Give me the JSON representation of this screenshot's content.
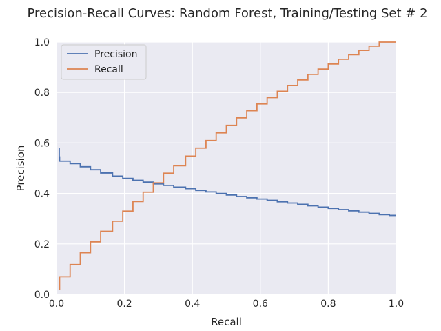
{
  "chart_data": {
    "type": "line",
    "title": "Precision-Recall Curves: Random Forest, Training/Testing Set # 2",
    "xlabel": "Recall",
    "ylabel": "Precision",
    "xlim": [
      0,
      1
    ],
    "ylim": [
      0,
      1
    ],
    "xticks": [
      "0.0",
      "0.2",
      "0.4",
      "0.6",
      "0.8",
      "1.0"
    ],
    "yticks": [
      "0.0",
      "0.2",
      "0.4",
      "0.6",
      "0.8",
      "1.0"
    ],
    "grid": true,
    "legend_position": "top-left",
    "series": [
      {
        "name": "Precision",
        "color": "#4c72b0",
        "step": true,
        "x": [
          0.008,
          0.008,
          0.009,
          0.04,
          0.07,
          0.1,
          0.13,
          0.165,
          0.195,
          0.225,
          0.255,
          0.285,
          0.315,
          0.345,
          0.38,
          0.41,
          0.44,
          0.47,
          0.5,
          0.53,
          0.56,
          0.59,
          0.62,
          0.65,
          0.68,
          0.71,
          0.74,
          0.77,
          0.8,
          0.83,
          0.86,
          0.89,
          0.92,
          0.95,
          0.98,
          1.0
        ],
        "y": [
          0.58,
          0.545,
          0.528,
          0.518,
          0.506,
          0.494,
          0.481,
          0.469,
          0.46,
          0.452,
          0.445,
          0.438,
          0.432,
          0.425,
          0.419,
          0.412,
          0.406,
          0.4,
          0.394,
          0.388,
          0.383,
          0.378,
          0.373,
          0.367,
          0.362,
          0.357,
          0.351,
          0.346,
          0.341,
          0.336,
          0.331,
          0.326,
          0.321,
          0.316,
          0.313,
          0.313
        ]
      },
      {
        "name": "Recall",
        "color": "#dd8452",
        "step": true,
        "x": [
          0.008,
          0.009,
          0.04,
          0.07,
          0.1,
          0.13,
          0.165,
          0.195,
          0.225,
          0.255,
          0.285,
          0.315,
          0.345,
          0.38,
          0.41,
          0.44,
          0.47,
          0.5,
          0.53,
          0.56,
          0.59,
          0.62,
          0.65,
          0.68,
          0.71,
          0.74,
          0.77,
          0.8,
          0.83,
          0.86,
          0.89,
          0.92,
          0.95,
          0.98,
          1.0
        ],
        "y": [
          0.02,
          0.07,
          0.118,
          0.165,
          0.208,
          0.25,
          0.29,
          0.33,
          0.368,
          0.405,
          0.442,
          0.48,
          0.51,
          0.548,
          0.58,
          0.61,
          0.64,
          0.67,
          0.7,
          0.728,
          0.755,
          0.78,
          0.805,
          0.828,
          0.85,
          0.872,
          0.893,
          0.913,
          0.932,
          0.95,
          0.967,
          0.984,
          1.0,
          1.0,
          1.0
        ]
      }
    ]
  }
}
